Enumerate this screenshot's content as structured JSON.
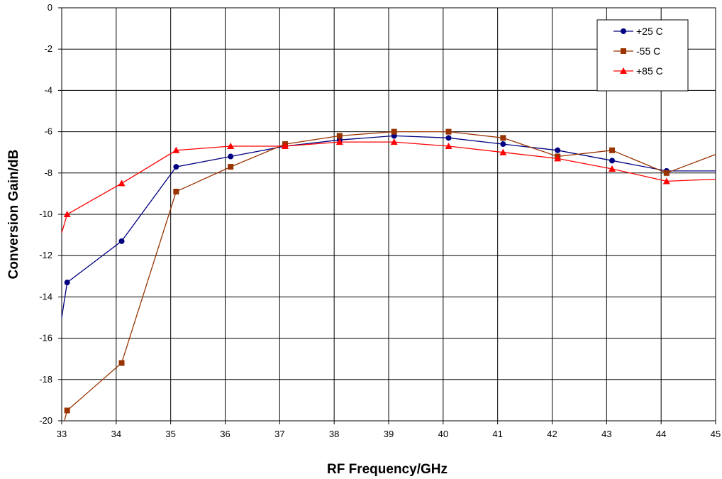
{
  "chart_data": {
    "type": "line",
    "title": "",
    "xlabel": "RF Frequency/GHz",
    "ylabel": "Conversion Gain/dB",
    "xlim": [
      33,
      45
    ],
    "ylim": [
      -20,
      0
    ],
    "xticks": [
      33,
      34,
      35,
      36,
      37,
      38,
      39,
      40,
      41,
      42,
      43,
      44,
      45
    ],
    "yticks": [
      0,
      -2,
      -4,
      -6,
      -8,
      -10,
      -12,
      -14,
      -16,
      -18,
      -20
    ],
    "grid": true,
    "legend_position": "top-right",
    "series": [
      {
        "name": "+25 C",
        "color": "#000080",
        "marker": "circle",
        "points": [
          [
            33,
            -15.0
          ],
          [
            33.1,
            -13.3
          ],
          [
            34.1,
            -11.3
          ],
          [
            35.1,
            -7.7
          ],
          [
            36.1,
            -7.2
          ],
          [
            37.1,
            -6.7
          ],
          [
            38.1,
            -6.4
          ],
          [
            39.1,
            -6.2
          ],
          [
            40.1,
            -6.3
          ],
          [
            41.1,
            -6.6
          ],
          [
            42.1,
            -6.9
          ],
          [
            43.1,
            -7.4
          ],
          [
            44.1,
            -7.9
          ],
          [
            45,
            -7.9
          ]
        ],
        "marked_x": [
          33.1,
          34.1,
          35.1,
          36.1,
          37.1,
          38.1,
          39.1,
          40.1,
          41.1,
          42.1,
          43.1,
          44.1
        ]
      },
      {
        "name": "-55 C",
        "color": "#993300",
        "marker": "square",
        "points": [
          [
            33.05,
            -20.0
          ],
          [
            33.1,
            -19.5
          ],
          [
            34.1,
            -17.2
          ],
          [
            35.1,
            -8.9
          ],
          [
            36.1,
            -7.7
          ],
          [
            37.1,
            -6.6
          ],
          [
            38.1,
            -6.2
          ],
          [
            39.1,
            -6.0
          ],
          [
            40.1,
            -6.0
          ],
          [
            41.1,
            -6.3
          ],
          [
            42.1,
            -7.2
          ],
          [
            43.1,
            -6.9
          ],
          [
            44.1,
            -8.0
          ],
          [
            45,
            -7.1
          ]
        ],
        "marked_x": [
          33.1,
          34.1,
          35.1,
          36.1,
          37.1,
          38.1,
          39.1,
          40.1,
          41.1,
          42.1,
          43.1,
          44.1
        ]
      },
      {
        "name": "+85 C",
        "color": "#ff0000",
        "marker": "triangle",
        "points": [
          [
            33,
            -10.9
          ],
          [
            33.1,
            -10.0
          ],
          [
            34.1,
            -8.5
          ],
          [
            35.1,
            -6.9
          ],
          [
            36.1,
            -6.7
          ],
          [
            37.1,
            -6.7
          ],
          [
            38.1,
            -6.5
          ],
          [
            39.1,
            -6.5
          ],
          [
            40.1,
            -6.7
          ],
          [
            41.1,
            -7.0
          ],
          [
            42.1,
            -7.3
          ],
          [
            43.1,
            -7.8
          ],
          [
            44.1,
            -8.4
          ],
          [
            45,
            -8.3
          ]
        ],
        "marked_x": [
          33.1,
          34.1,
          35.1,
          36.1,
          37.1,
          38.1,
          39.1,
          40.1,
          41.1,
          42.1,
          43.1,
          44.1
        ]
      }
    ]
  }
}
